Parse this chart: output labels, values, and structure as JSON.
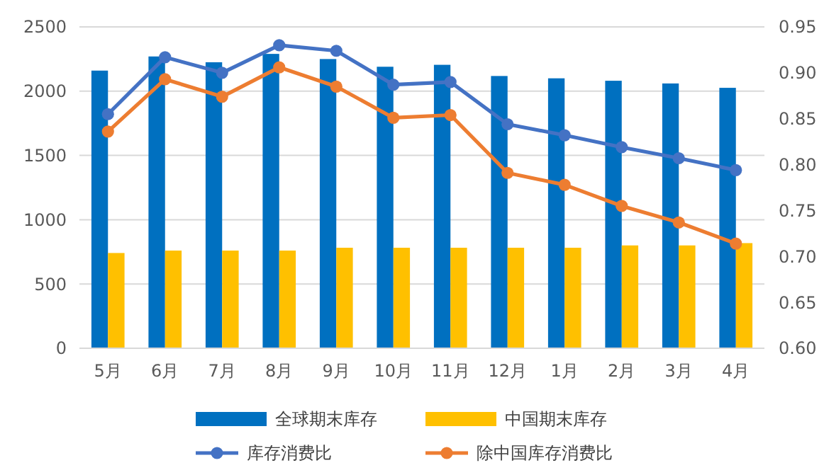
{
  "chart_data": {
    "type": "bar",
    "categories": [
      "5月",
      "6月",
      "7月",
      "8月",
      "9月",
      "10月",
      "11月",
      "12月",
      "1月",
      "2月",
      "3月",
      "4月"
    ],
    "series": [
      {
        "name": "全球期末库存",
        "color": "#0070c0",
        "values": [
          2160,
          2270,
          2225,
          2290,
          2250,
          2190,
          2205,
          2118,
          2100,
          2081,
          2060,
          2026
        ]
      },
      {
        "name": "中国期末库存",
        "color": "#ffc000",
        "values": [
          741,
          760,
          760,
          760,
          782,
          782,
          782,
          782,
          782,
          800,
          800,
          818
        ]
      },
      {
        "name": "库存消费比",
        "type": "line",
        "axis": "y2",
        "color": "#4472c4",
        "marker": "circle",
        "values": [
          0.855,
          0.917,
          0.9,
          0.93,
          0.924,
          0.887,
          0.89,
          0.844,
          0.832,
          0.819,
          0.807,
          0.794
        ]
      },
      {
        "name": "除中国库存消费比",
        "type": "line",
        "axis": "y2",
        "color": "#ed7d31",
        "marker": "circle",
        "values": [
          0.836,
          0.893,
          0.874,
          0.906,
          0.885,
          0.851,
          0.854,
          0.791,
          0.778,
          0.755,
          0.737,
          0.714
        ]
      }
    ],
    "ylim": [
      0,
      2500
    ],
    "yticks": [
      0,
      500,
      1000,
      1500,
      2000,
      2500
    ],
    "y2lim": [
      0.6,
      0.95
    ],
    "y2ticks": [
      {
        "value": 0.6,
        "label": "0.60"
      },
      {
        "value": 0.65,
        "label": "0.65"
      },
      {
        "value": 0.7,
        "label": "0.70"
      },
      {
        "value": 0.75,
        "label": "0.75"
      },
      {
        "value": 0.8,
        "label": "0.80"
      },
      {
        "value": 0.85,
        "label": "0.85"
      },
      {
        "value": 0.9,
        "label": "0.90"
      },
      {
        "value": 0.95,
        "label": "0.95"
      }
    ],
    "grid": "y",
    "legend": "bottom"
  }
}
